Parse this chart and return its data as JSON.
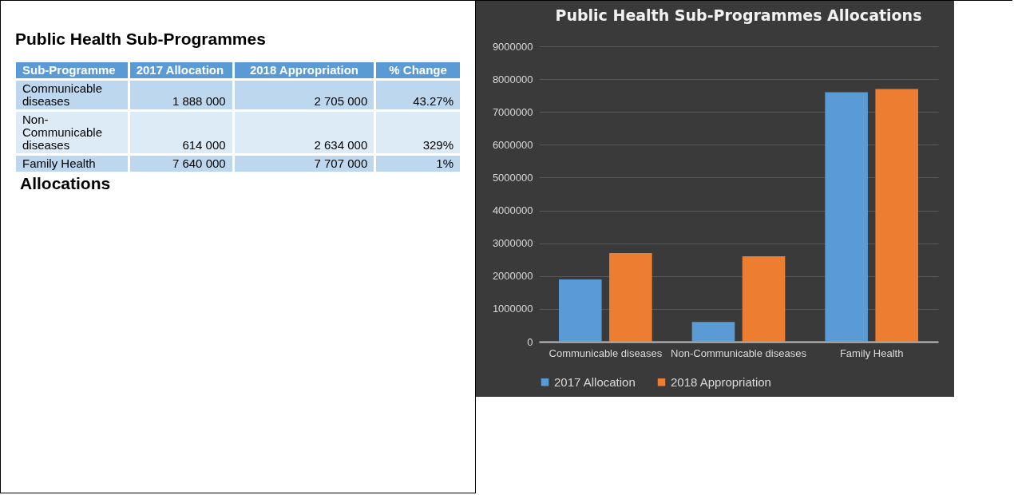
{
  "chart_data": [
    {
      "type": "other",
      "title": "Public Health Sub-Programmes",
      "annotations": [
        "Sub-Programme",
        "2017 Allocation",
        "2018 Appropriation",
        "% Change",
        "Communicable diseases",
        "1 888 000",
        "2 705 000",
        "43.27%",
        "Non-Communicable diseases",
        "614 000",
        "2 634 000",
        "329%",
        "Family Health",
        "7 640 000",
        "7 707 000",
        "1%",
        "Allocations"
      ]
    },
    {
      "type": "bar",
      "title": "Public Health Sub-Programmes Allocations",
      "categories": [
        "Communicable diseases",
        "Non-Communicable diseases",
        "Family Health"
      ],
      "series": [
        {
          "name": "2017 Allocation",
          "color": "#5b9bd5",
          "values": [
            1900000,
            600000,
            7600000
          ]
        },
        {
          "name": "2018 Appropriation",
          "color": "#ed7d31",
          "values": [
            2700000,
            2600000,
            7700000
          ]
        }
      ],
      "ylim": [
        0,
        9000000
      ],
      "yticks": [
        0,
        1000000,
        2000000,
        3000000,
        4000000,
        5000000,
        6000000,
        7000000,
        8000000,
        9000000
      ],
      "grid": "y",
      "legend": "bottom"
    }
  ]
}
